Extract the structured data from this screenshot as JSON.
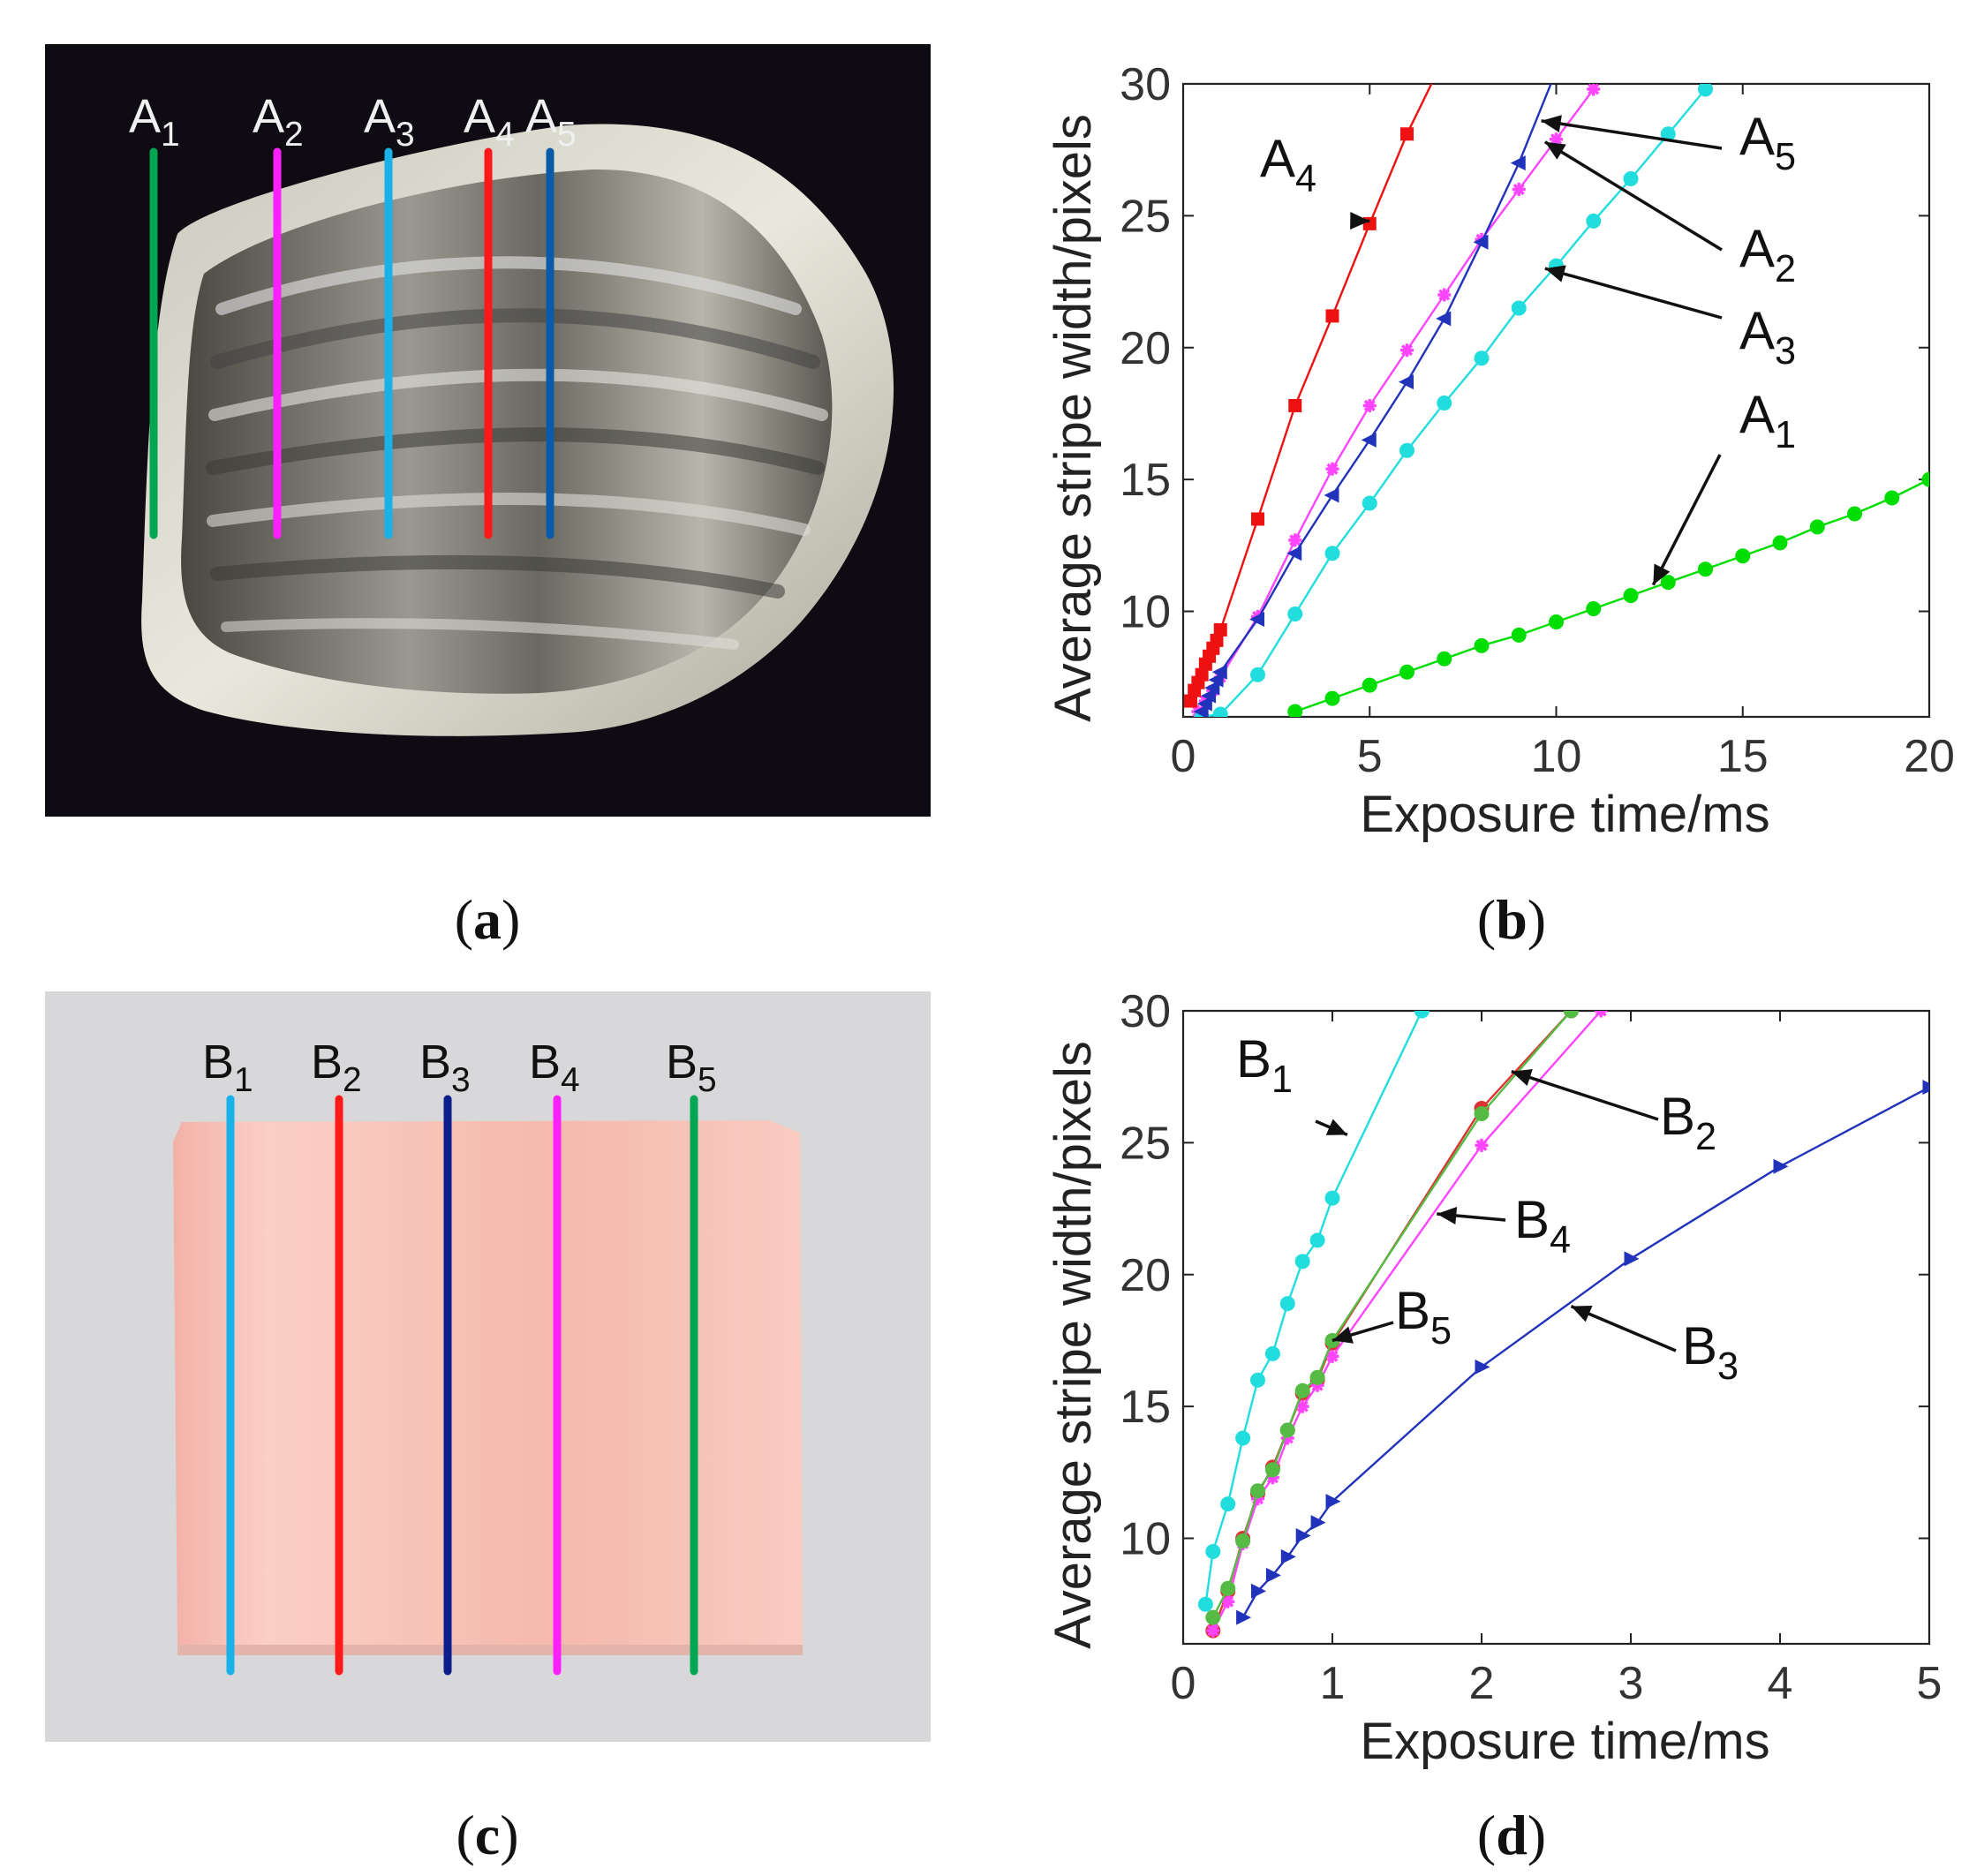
{
  "figure": {
    "captions": {
      "a": "a",
      "b": "b",
      "c": "c",
      "d": "d"
    }
  },
  "photo_a": {
    "lines": [
      {
        "base": "A",
        "sub": "1",
        "color": "#00a651"
      },
      {
        "base": "A",
        "sub": "2",
        "color": "#ff20ff"
      },
      {
        "base": "A",
        "sub": "3",
        "color": "#1ab0e8"
      },
      {
        "base": "A",
        "sub": "4",
        "color": "#ff1a1a"
      },
      {
        "base": "A",
        "sub": "5",
        "color": "#0b5aa8"
      }
    ]
  },
  "photo_c": {
    "lines": [
      {
        "base": "B",
        "sub": "1",
        "color": "#1ab0e8"
      },
      {
        "base": "B",
        "sub": "2",
        "color": "#ff1a1a"
      },
      {
        "base": "B",
        "sub": "3",
        "color": "#0b1e8c"
      },
      {
        "base": "B",
        "sub": "4",
        "color": "#ff20ff"
      },
      {
        "base": "B",
        "sub": "5",
        "color": "#00a651"
      }
    ]
  },
  "chart_data": [
    {
      "type": "line",
      "panel": "b",
      "xlabel": "Exposure time/ms",
      "ylabel": "Average stripe width/pixels",
      "xlim": [
        0,
        20
      ],
      "ylim": [
        6,
        30
      ],
      "xticks": [
        0,
        5,
        10,
        15,
        20
      ],
      "yticks": [
        10,
        15,
        20,
        25,
        30
      ],
      "grid": false,
      "series": [
        {
          "name": "A1",
          "color": "#00dd00",
          "marker": "circle",
          "x": [
            3,
            4,
            5,
            6,
            7,
            8,
            9,
            10,
            11,
            12,
            13,
            14,
            15,
            16,
            17,
            18,
            19,
            20
          ],
          "y": [
            6.2,
            6.7,
            7.2,
            7.7,
            8.2,
            8.7,
            9.1,
            9.6,
            10.1,
            10.6,
            11.1,
            11.6,
            12.1,
            12.6,
            13.2,
            13.7,
            14.3,
            15.0
          ]
        },
        {
          "name": "A2",
          "color": "#ff44ff",
          "marker": "star",
          "x": [
            0.4,
            0.6,
            0.8,
            1,
            2,
            3,
            4,
            5,
            6,
            7,
            8,
            9,
            10,
            11
          ],
          "y": [
            6.2,
            6.6,
            7.0,
            7.5,
            9.8,
            12.7,
            15.4,
            17.8,
            19.9,
            22.0,
            24.1,
            26.0,
            27.9,
            29.8
          ]
        },
        {
          "name": "A3",
          "color": "#22dddd",
          "marker": "circle",
          "x": [
            0.5,
            1,
            2,
            3,
            4,
            5,
            6,
            7,
            8,
            9,
            10,
            11,
            12,
            13,
            14
          ],
          "y": [
            6.0,
            6.1,
            7.6,
            9.9,
            12.2,
            14.1,
            16.1,
            17.9,
            19.6,
            21.5,
            23.1,
            24.8,
            26.4,
            28.1,
            29.8
          ]
        },
        {
          "name": "A4",
          "color": "#ee1111",
          "marker": "square",
          "x": [
            0.2,
            0.3,
            0.4,
            0.5,
            0.6,
            0.7,
            0.8,
            0.9,
            1,
            2,
            3,
            4,
            5,
            6,
            7
          ],
          "y": [
            6.6,
            7.0,
            7.3,
            7.6,
            8.0,
            8.3,
            8.6,
            8.9,
            9.3,
            13.5,
            17.8,
            21.2,
            24.7,
            28.1,
            31.0
          ]
        },
        {
          "name": "A5",
          "color": "#2233bb",
          "marker": "triangle-left",
          "x": [
            0.5,
            0.6,
            0.7,
            0.8,
            0.9,
            1,
            2,
            3,
            4,
            5,
            6,
            7,
            8,
            9,
            10
          ],
          "y": [
            6.2,
            6.5,
            6.8,
            7.1,
            7.4,
            7.7,
            9.7,
            12.2,
            14.4,
            16.5,
            18.7,
            21.1,
            24.0,
            27.0,
            30.5
          ]
        }
      ],
      "annotations": [
        {
          "base": "A",
          "sub": "4"
        },
        {
          "base": "A",
          "sub": "5"
        },
        {
          "base": "A",
          "sub": "2"
        },
        {
          "base": "A",
          "sub": "3"
        },
        {
          "base": "A",
          "sub": "1"
        }
      ]
    },
    {
      "type": "line",
      "panel": "d",
      "xlabel": "Exposure time/ms",
      "ylabel": "Average stripe width/pixels",
      "xlim": [
        0,
        5
      ],
      "ylim": [
        6,
        30
      ],
      "xticks": [
        0,
        1,
        2,
        3,
        4,
        5
      ],
      "yticks": [
        10,
        15,
        20,
        25,
        30
      ],
      "grid": false,
      "series": [
        {
          "name": "B1",
          "color": "#22dddd",
          "marker": "circle",
          "x": [
            0.15,
            0.2,
            0.3,
            0.4,
            0.5,
            0.6,
            0.7,
            0.8,
            0.9,
            1.0,
            1.6
          ],
          "y": [
            7.5,
            9.5,
            11.3,
            13.8,
            16.0,
            17.0,
            18.9,
            20.5,
            21.3,
            22.9,
            30.0
          ]
        },
        {
          "name": "B2",
          "color": "#dd3333",
          "marker": "circle",
          "x": [
            0.2,
            0.3,
            0.4,
            0.5,
            0.6,
            0.7,
            0.8,
            0.9,
            1.0,
            2.0,
            2.6
          ],
          "y": [
            6.5,
            8.0,
            10.0,
            11.7,
            12.7,
            14.1,
            15.5,
            16.0,
            17.4,
            26.3,
            30.0
          ]
        },
        {
          "name": "B3",
          "color": "#2233bb",
          "marker": "triangle-right",
          "x": [
            0.4,
            0.5,
            0.6,
            0.7,
            0.8,
            0.9,
            1.0,
            2.0,
            3.0,
            4.0,
            5.0
          ],
          "y": [
            7.0,
            8.0,
            8.6,
            9.3,
            10.1,
            10.6,
            11.4,
            16.5,
            20.6,
            24.1,
            27.1
          ]
        },
        {
          "name": "B4",
          "color": "#ff44ff",
          "marker": "star",
          "x": [
            0.2,
            0.3,
            0.4,
            0.5,
            0.6,
            0.7,
            0.8,
            0.9,
            1.0,
            2.0,
            2.8
          ],
          "y": [
            6.5,
            7.6,
            9.8,
            11.5,
            12.3,
            13.8,
            15.0,
            15.8,
            16.9,
            24.9,
            30.0
          ]
        },
        {
          "name": "B5",
          "color": "#55bb44",
          "marker": "circle",
          "x": [
            0.2,
            0.3,
            0.4,
            0.5,
            0.6,
            0.7,
            0.8,
            0.9,
            1.0,
            2.0,
            2.6
          ],
          "y": [
            7.0,
            8.1,
            9.9,
            11.8,
            12.6,
            14.1,
            15.6,
            16.1,
            17.5,
            26.1,
            30.0
          ]
        }
      ],
      "annotations": [
        {
          "base": "B",
          "sub": "1"
        },
        {
          "base": "B",
          "sub": "2"
        },
        {
          "base": "B",
          "sub": "4"
        },
        {
          "base": "B",
          "sub": "5"
        },
        {
          "base": "B",
          "sub": "3"
        }
      ]
    }
  ]
}
